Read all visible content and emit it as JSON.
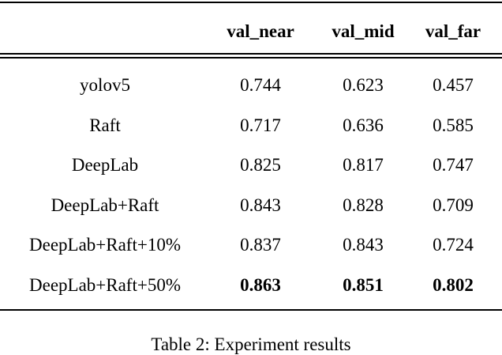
{
  "table": {
    "header": [
      "",
      "val_near",
      "val_mid",
      "val_far"
    ],
    "rows": [
      [
        "yolov5",
        "0.744",
        "0.623",
        "0.457"
      ],
      [
        "Raft",
        "0.717",
        "0.636",
        "0.585"
      ],
      [
        "DeepLab",
        "0.825",
        "0.817",
        "0.747"
      ],
      [
        "DeepLab+Raft",
        "0.843",
        "0.828",
        "0.709"
      ],
      [
        "DeepLab+Raft+10%",
        "0.837",
        "0.843",
        "0.724"
      ],
      [
        "DeepLab+Raft+50%",
        "0.863",
        "0.851",
        "0.802"
      ]
    ],
    "caption": "Table 2: Experiment results"
  }
}
